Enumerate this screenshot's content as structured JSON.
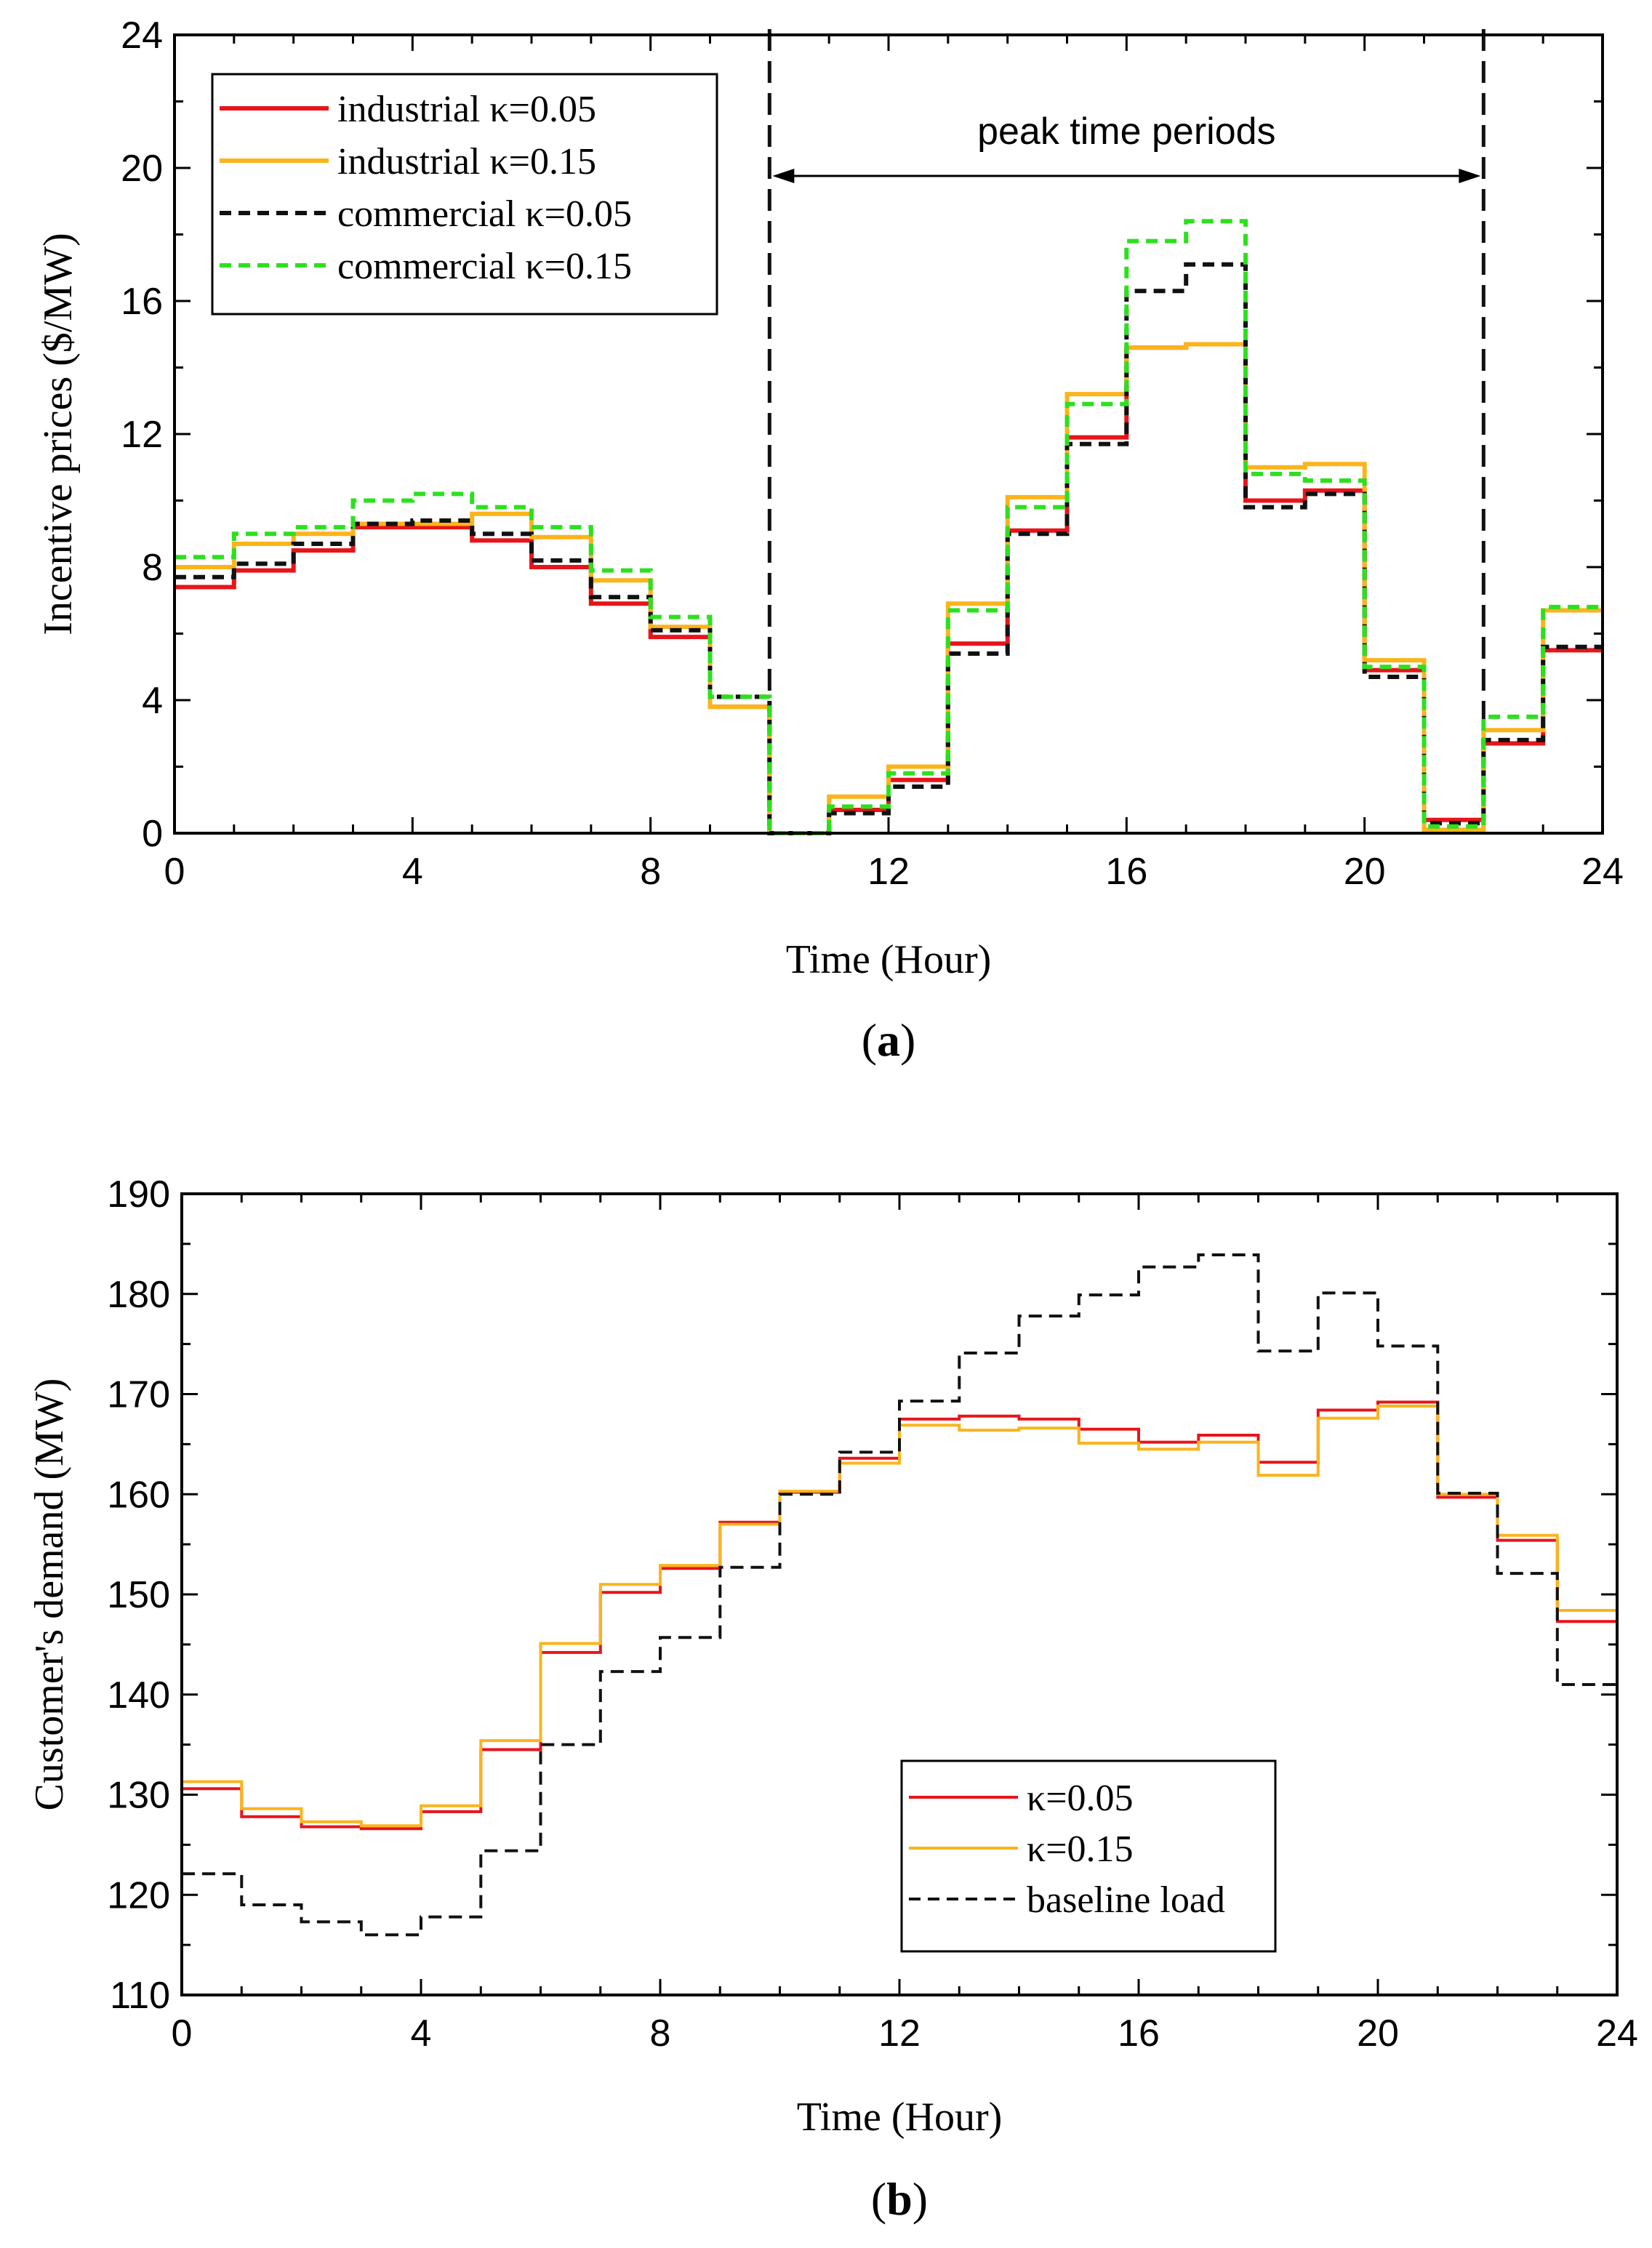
{
  "chart_data": [
    {
      "type": "line",
      "step": true,
      "caption": "a",
      "title": "",
      "xlabel": "Time (Hour)",
      "ylabel": "Incentive prices ($/MW)",
      "xlim": [
        0,
        24
      ],
      "ylim": [
        0,
        24
      ],
      "xticks": [
        "0",
        "4",
        "8",
        "12",
        "16",
        "20",
        "24"
      ],
      "yticks": [
        "0",
        "4",
        "8",
        "12",
        "16",
        "20",
        "24"
      ],
      "grid": false,
      "legend_position": "top-left",
      "series": [
        {
          "name": "industrial κ=0.05",
          "color": "#e8141b",
          "dash": "solid",
          "values": [
            7.4,
            7.9,
            8.5,
            9.2,
            9.2,
            8.8,
            8.0,
            6.9,
            5.9,
            3.8,
            0,
            0.7,
            1.6,
            5.7,
            9.1,
            11.9,
            14.6,
            14.7,
            10.0,
            10.3,
            4.9,
            0.4,
            2.7,
            5.5
          ]
        },
        {
          "name": "industrial κ=0.15",
          "color": "#fbb41b",
          "dash": "solid",
          "values": [
            8.0,
            8.7,
            9.0,
            9.3,
            9.3,
            9.6,
            8.9,
            7.6,
            6.2,
            3.8,
            0,
            1.1,
            2.0,
            6.9,
            10.1,
            13.2,
            14.6,
            14.7,
            11.0,
            11.1,
            5.2,
            0.1,
            3.1,
            6.7
          ]
        },
        {
          "name": "commercial κ=0.05",
          "color": "#111111",
          "dash": "dashed",
          "values": [
            7.7,
            8.1,
            8.7,
            9.3,
            9.4,
            9.0,
            8.2,
            7.1,
            6.1,
            4.1,
            0,
            0.6,
            1.4,
            5.4,
            9.0,
            11.7,
            16.3,
            17.1,
            9.8,
            10.2,
            4.7,
            0.3,
            2.8,
            5.6
          ]
        },
        {
          "name": "commercial κ=0.15",
          "color": "#2de01e",
          "dash": "dashed",
          "values": [
            8.3,
            9.0,
            9.2,
            10.0,
            10.2,
            9.8,
            9.2,
            7.9,
            6.5,
            4.1,
            0,
            0.8,
            1.8,
            6.7,
            9.8,
            12.9,
            17.8,
            18.4,
            10.8,
            10.6,
            5.0,
            0.2,
            3.5,
            6.8
          ]
        }
      ],
      "vertical_lines": [
        10,
        22
      ],
      "annotation": {
        "text": "peak time periods",
        "from": 10,
        "to": 22
      }
    },
    {
      "type": "line",
      "step": true,
      "caption": "b",
      "title": "",
      "xlabel": "Time (Hour)",
      "ylabel": "Customer's demand (MW)",
      "xlim": [
        0,
        24
      ],
      "ylim": [
        110,
        190
      ],
      "xticks": [
        "0",
        "4",
        "8",
        "12",
        "16",
        "20",
        "24"
      ],
      "yticks": [
        "110",
        "120",
        "130",
        "140",
        "150",
        "160",
        "170",
        "180",
        "190"
      ],
      "grid": false,
      "legend_position": "bottom-center",
      "series": [
        {
          "name": "κ=0.05",
          "color": "#e8141b",
          "dash": "solid",
          "values": [
            130.6,
            127.8,
            126.8,
            126.6,
            128.3,
            134.5,
            144.2,
            150.2,
            152.6,
            157.2,
            160.2,
            163.6,
            167.5,
            167.8,
            167.5,
            166.5,
            165.2,
            165.9,
            163.2,
            168.4,
            169.2,
            159.7,
            155.4,
            147.3
          ]
        },
        {
          "name": "κ=0.15",
          "color": "#fbb41b",
          "dash": "solid",
          "values": [
            131.3,
            128.6,
            127.3,
            126.9,
            128.9,
            135.4,
            145.1,
            151.0,
            152.9,
            157.0,
            160.3,
            163.1,
            166.9,
            166.4,
            166.6,
            165.1,
            164.5,
            165.2,
            161.9,
            167.6,
            168.8,
            160.0,
            155.9,
            148.4
          ]
        },
        {
          "name": "baseline load",
          "color": "#111111",
          "dash": "dashed",
          "values": [
            122.1,
            119.0,
            117.3,
            116.0,
            117.8,
            124.4,
            135.0,
            142.3,
            145.7,
            152.7,
            160.0,
            164.2,
            169.3,
            174.1,
            177.8,
            179.9,
            182.7,
            183.9,
            174.3,
            180.1,
            174.8,
            160.1,
            152.1,
            141.0
          ]
        }
      ]
    }
  ]
}
